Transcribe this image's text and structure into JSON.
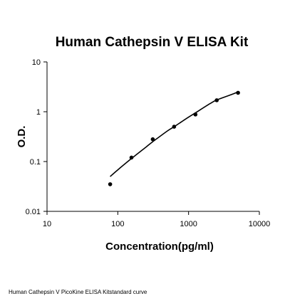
{
  "chart_data": {
    "type": "scatter",
    "title": "Human Cathepsin V ELISA Kit",
    "xlabel": "Concentration(pg/ml)",
    "ylabel": "O.D.",
    "xscale": "log",
    "yscale": "log",
    "xlim": [
      10,
      10000
    ],
    "ylim": [
      0.01,
      10
    ],
    "grid": false,
    "x_ticks": [
      "10",
      "100",
      "1000",
      "10000"
    ],
    "y_ticks": [
      "0.01",
      "0.1",
      "1",
      "10"
    ],
    "series": [
      {
        "kind": "points",
        "color": "#000000",
        "x": [
          78,
          156,
          312,
          625,
          1250,
          2500,
          5000
        ],
        "y": [
          0.035,
          0.12,
          0.28,
          0.5,
          0.88,
          1.7,
          2.4
        ]
      },
      {
        "kind": "fit-curve",
        "color": "#000000",
        "x": [
          78,
          100,
          156,
          250,
          312,
          500,
          625,
          1000,
          1250,
          2000,
          2500,
          4000,
          5000
        ],
        "y": [
          0.05,
          0.068,
          0.115,
          0.195,
          0.25,
          0.41,
          0.5,
          0.78,
          0.95,
          1.45,
          1.72,
          2.2,
          2.5
        ]
      }
    ]
  },
  "caption": "Human Cathepsin V PicoKine ELISA Kitstandard curve"
}
